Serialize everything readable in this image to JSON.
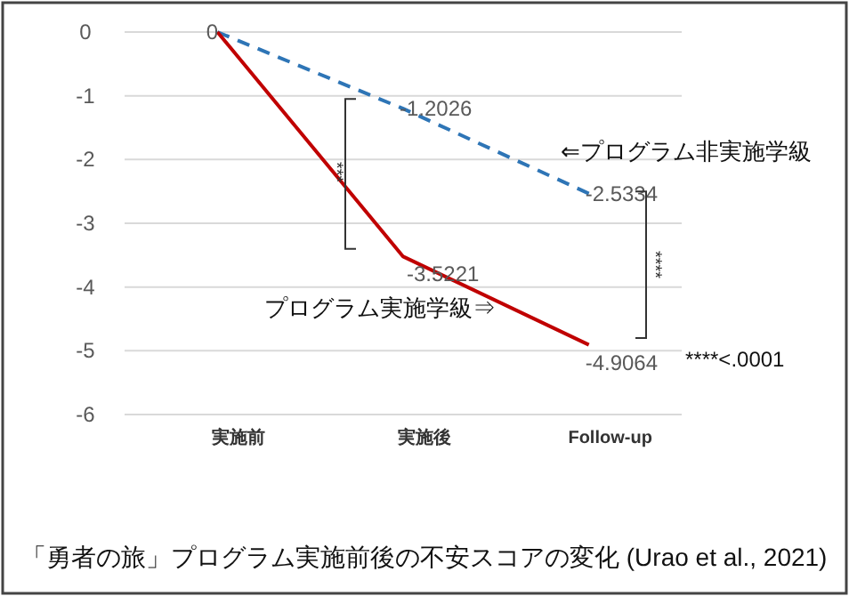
{
  "chart_data": {
    "type": "line",
    "title": "「勇者の旅」プログラム実施前後の不安スコアの変化 (Urao et al., 2021)",
    "categories": [
      "実施前",
      "実施後",
      "Follow-up"
    ],
    "series": [
      {
        "name": "⇐プログラム非実施学級",
        "color": "#2e75b6",
        "line_style": "dashed",
        "values": [
          0,
          -1.2026,
          -2.5334
        ],
        "value_labels": [
          null,
          "-1.2026",
          "-2.5334"
        ]
      },
      {
        "name": "プログラム実施学級⇒",
        "color": "#c00000",
        "line_style": "solid",
        "values": [
          0,
          -3.5221,
          -4.9064
        ],
        "value_labels": [
          "0",
          "-3.5221",
          "-4.9064"
        ]
      }
    ],
    "ylim": [
      -6,
      0
    ],
    "yticks": [
      0,
      -1,
      -2,
      -3,
      -4,
      -5,
      -6
    ],
    "grid": "y",
    "annotations": [
      "***",
      "****",
      "****<.0001"
    ]
  }
}
